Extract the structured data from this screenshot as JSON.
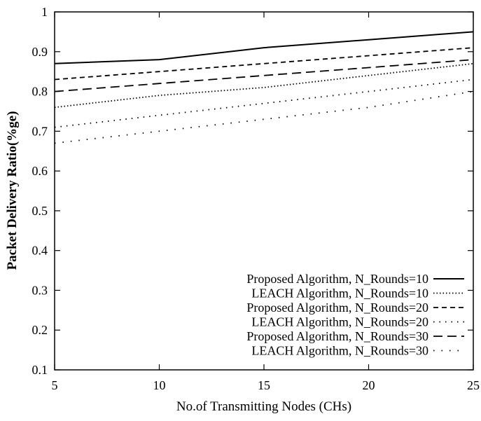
{
  "chart_data": {
    "type": "line",
    "title": "",
    "xlabel": "No.of Transmitting Nodes (CHs)",
    "ylabel": "Packet Delivery Ratio(%ge)",
    "xlim": [
      5,
      25
    ],
    "ylim": [
      0.1,
      1.0
    ],
    "xticks": [
      "5",
      "10",
      "15",
      "20",
      "25"
    ],
    "yticks": [
      "0.1",
      "0.2",
      "0.3",
      "0.4",
      "0.5",
      "0.6",
      "0.7",
      "0.8",
      "0.9",
      "1"
    ],
    "grid": false,
    "legend_position": "bottom-right",
    "series": [
      {
        "name": "Proposed Algorithm, N_Rounds=10",
        "style": "solid",
        "x": [
          5,
          10,
          15,
          20,
          25
        ],
        "values": [
          0.87,
          0.88,
          0.91,
          0.93,
          0.95
        ]
      },
      {
        "name": "LEACH Algorithm, N_Rounds=10",
        "style": "dotted",
        "x": [
          5,
          10,
          15,
          20,
          25
        ],
        "values": [
          0.76,
          0.79,
          0.81,
          0.84,
          0.87
        ]
      },
      {
        "name": "Proposed Algorithm, N_Rounds=20",
        "style": "short-dash",
        "x": [
          5,
          10,
          15,
          20,
          25
        ],
        "values": [
          0.83,
          0.85,
          0.87,
          0.89,
          0.91
        ]
      },
      {
        "name": "LEACH Algorithm, N_Rounds=20",
        "style": "sparse-dot",
        "x": [
          5,
          10,
          15,
          20,
          25
        ],
        "values": [
          0.71,
          0.74,
          0.77,
          0.8,
          0.83
        ]
      },
      {
        "name": "Proposed Algorithm, N_Rounds=30",
        "style": "long-dash",
        "x": [
          5,
          10,
          15,
          20,
          25
        ],
        "values": [
          0.8,
          0.82,
          0.84,
          0.86,
          0.88
        ]
      },
      {
        "name": "LEACH Algorithm, N_Rounds=30",
        "style": "very-sparse-dot",
        "x": [
          5,
          10,
          15,
          20,
          25
        ],
        "values": [
          0.67,
          0.7,
          0.73,
          0.76,
          0.8
        ]
      }
    ]
  }
}
